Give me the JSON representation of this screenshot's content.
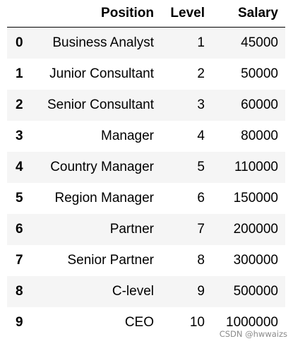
{
  "table": {
    "columns": {
      "index": "",
      "position": "Position",
      "level": "Level",
      "salary": "Salary"
    },
    "rows": [
      {
        "index": "0",
        "position": "Business Analyst",
        "level": "1",
        "salary": "45000"
      },
      {
        "index": "1",
        "position": "Junior Consultant",
        "level": "2",
        "salary": "50000"
      },
      {
        "index": "2",
        "position": "Senior Consultant",
        "level": "3",
        "salary": "60000"
      },
      {
        "index": "3",
        "position": "Manager",
        "level": "4",
        "salary": "80000"
      },
      {
        "index": "4",
        "position": "Country Manager",
        "level": "5",
        "salary": "110000"
      },
      {
        "index": "5",
        "position": "Region Manager",
        "level": "6",
        "salary": "150000"
      },
      {
        "index": "6",
        "position": "Partner",
        "level": "7",
        "salary": "200000"
      },
      {
        "index": "7",
        "position": "Senior Partner",
        "level": "8",
        "salary": "300000"
      },
      {
        "index": "8",
        "position": "C-level",
        "level": "9",
        "salary": "500000"
      },
      {
        "index": "9",
        "position": "CEO",
        "level": "10",
        "salary": "1000000"
      }
    ]
  },
  "watermark": "CSDN @hwwaizs",
  "colors": {
    "row_stripe": "#f5f5f5",
    "watermark": "#8a8a8a"
  }
}
